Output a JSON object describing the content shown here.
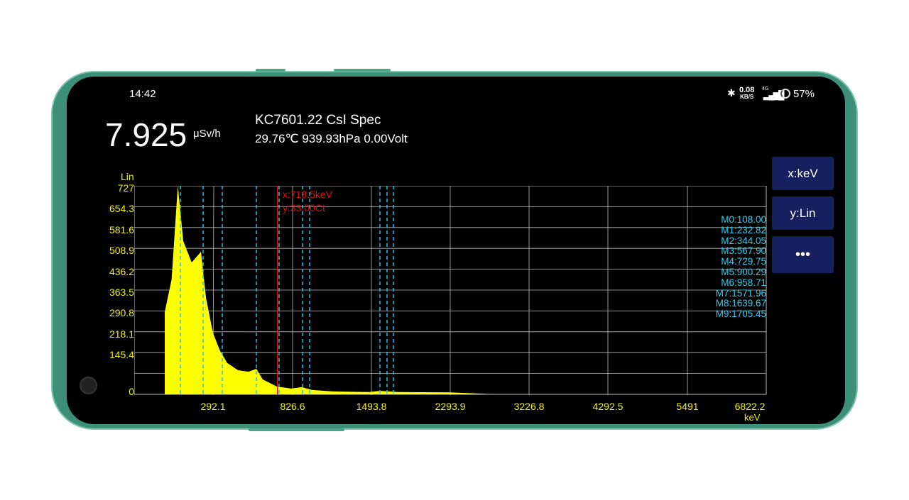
{
  "status": {
    "time": "14:42",
    "net_speed": "0.08",
    "net_unit": "KB/S",
    "net_type": "4G",
    "battery": "57%"
  },
  "reading": {
    "value": "7.925",
    "unit": "μSv/h"
  },
  "device": {
    "title": "KC7601.22 CsI Spec",
    "env": "29.76℃ 939.93hPa 0.00Volt"
  },
  "buttons": {
    "x_axis": "x:keV",
    "y_axis": "y:Lin",
    "more": "•••"
  },
  "chart_data": {
    "type": "area",
    "y_scale_label": "Lin",
    "xlabel": "keV",
    "ylim": [
      0,
      727
    ],
    "y_ticks": [
      "727",
      "654.3",
      "581.6",
      "508.9",
      "436.2",
      "363.5",
      "290.8",
      "218.1",
      "145.4",
      "0"
    ],
    "x_ticks": [
      "292.1",
      "826.6",
      "1493.8",
      "2293.9",
      "3226.8",
      "4292.5",
      "5491",
      "6822.2"
    ],
    "cursor": {
      "energy": 718.5,
      "x_label": "x:718.5keV",
      "y_label": "y:33.00Ct"
    },
    "markers": [
      {
        "label": "M0:108.00",
        "energy": 108.0
      },
      {
        "label": "M1:232.82",
        "energy": 232.82
      },
      {
        "label": "M2:344.05",
        "energy": 344.05
      },
      {
        "label": "M3:567.90",
        "energy": 567.9
      },
      {
        "label": "M4:729.75",
        "energy": 729.75
      },
      {
        "label": "M5:900.29",
        "energy": 900.29
      },
      {
        "label": "M6:958.71",
        "energy": 958.71
      },
      {
        "label": "M7:1571.96",
        "energy": 1571.96
      },
      {
        "label": "M8:1639.67",
        "energy": 1639.67
      },
      {
        "label": "M9:1705.45",
        "energy": 1705.45
      }
    ],
    "spectrum": [
      [
        23,
        0
      ],
      [
        23,
        287
      ],
      [
        60,
        400
      ],
      [
        94,
        727
      ],
      [
        124,
        534
      ],
      [
        170,
        460
      ],
      [
        221,
        497
      ],
      [
        250,
        336
      ],
      [
        292,
        213
      ],
      [
        332,
        151
      ],
      [
        377,
        109
      ],
      [
        447,
        84
      ],
      [
        517,
        79
      ],
      [
        568,
        89
      ],
      [
        613,
        52
      ],
      [
        715,
        27
      ],
      [
        816,
        20
      ],
      [
        895,
        25
      ],
      [
        983,
        15
      ],
      [
        1168,
        10
      ],
      [
        1475,
        8
      ],
      [
        1572,
        12
      ],
      [
        1750,
        8
      ],
      [
        2279,
        7
      ],
      [
        2848,
        0
      ]
    ]
  }
}
